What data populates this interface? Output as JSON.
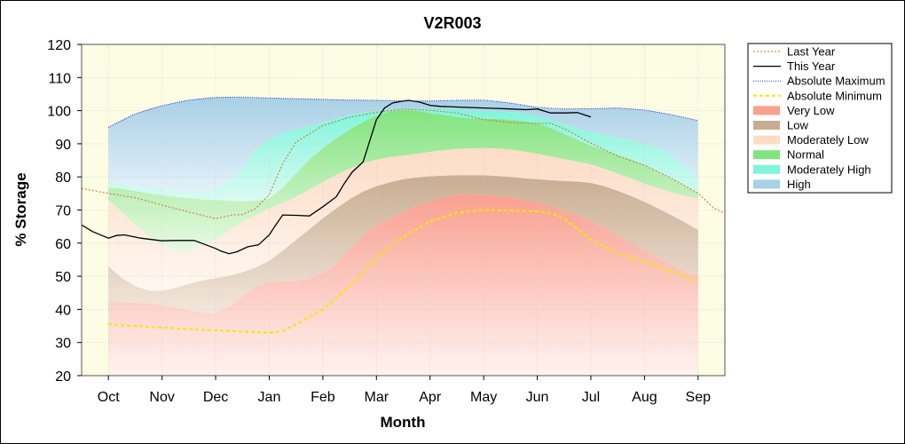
{
  "chart_data": {
    "type": "area",
    "title": "V2R003",
    "xlabel": "Month",
    "ylabel": "% Storage",
    "ylim": [
      20,
      120
    ],
    "yticks": [
      20,
      30,
      40,
      50,
      60,
      70,
      80,
      90,
      100,
      110,
      120
    ],
    "xlim": [
      -0.5,
      11.5
    ],
    "categories": [
      "Oct",
      "Nov",
      "Dec",
      "Jan",
      "Feb",
      "Mar",
      "Apr",
      "May",
      "Jun",
      "Jul",
      "Aug",
      "Sep"
    ],
    "grid": true,
    "legend_position": "right",
    "band_x": [
      0,
      0.25,
      0.5,
      0.75,
      1,
      1.25,
      1.5,
      1.75,
      2,
      2.25,
      2.5,
      2.75,
      3,
      3.25,
      3.5,
      3.75,
      4,
      4.25,
      4.5,
      4.75,
      5,
      5.25,
      5.5,
      5.75,
      6,
      6.25,
      6.5,
      6.75,
      7,
      7.25,
      7.5,
      7.75,
      8,
      8.25,
      8.5,
      8.75,
      9,
      9.25,
      9.5,
      9.75,
      10,
      10.25,
      10.5,
      10.75,
      11
    ],
    "bands": [
      {
        "name": "Very Low",
        "color_top": "#f9a090",
        "color_bottom": "#fff3f0",
        "lower": [
          20,
          20,
          20,
          20,
          20,
          20,
          20,
          20,
          20,
          20,
          20,
          20,
          20,
          20,
          20,
          20,
          20,
          20,
          20,
          20,
          20,
          20,
          20,
          20,
          20,
          20,
          20,
          20,
          20,
          20,
          20,
          20,
          20,
          20,
          20,
          20,
          20,
          20,
          20,
          20,
          20,
          20,
          20,
          20,
          20
        ],
        "upper": [
          42.5,
          42.3,
          42.1,
          41.8,
          41.4,
          40.6,
          39.8,
          39,
          38.8,
          41,
          44,
          47,
          48.3,
          48.5,
          48.7,
          49.3,
          51,
          54,
          58,
          62.5,
          65.5,
          67.5,
          69.5,
          71.3,
          72.7,
          73.8,
          74.5,
          74.7,
          74.6,
          74.2,
          73.8,
          73,
          72.5,
          71.2,
          69.8,
          68.3,
          66.7,
          64.8,
          62.5,
          60,
          57.8,
          55.5,
          53.5,
          51.5,
          50
        ]
      },
      {
        "name": "Low",
        "color_top": "#c9ad91",
        "color_bottom": "#f2e7dc",
        "lower": [
          42.5,
          42.3,
          42.1,
          41.8,
          41.4,
          40.6,
          39.8,
          39,
          38.8,
          41,
          44,
          47,
          48.3,
          48.5,
          48.7,
          49.3,
          51,
          54,
          58,
          62.5,
          65.5,
          67.5,
          69.5,
          71.3,
          72.7,
          73.8,
          74.5,
          74.7,
          74.6,
          74.2,
          73.8,
          73,
          72.5,
          71.2,
          69.8,
          68.3,
          66.7,
          64.8,
          62.5,
          60,
          57.8,
          55.5,
          53.5,
          51.5,
          50
        ],
        "upper": [
          53,
          49.5,
          47,
          45.7,
          45.6,
          46.5,
          47.7,
          48.7,
          49.4,
          50.2,
          51.2,
          52.7,
          54.7,
          57.7,
          61,
          64.2,
          67.5,
          70.5,
          73.3,
          75.6,
          77.2,
          78.4,
          79.3,
          79.8,
          80.2,
          80.4,
          80.5,
          80.5,
          80.5,
          80.3,
          80,
          79.6,
          79.3,
          79,
          78.8,
          78.6,
          78.2,
          77.2,
          75.8,
          74.2,
          72.5,
          70.5,
          68.5,
          66.3,
          64
        ]
      },
      {
        "name": "Moderately Low",
        "color_top": "#fcdcc6",
        "color_bottom": "#fff8f2",
        "lower": [
          53,
          49.5,
          47,
          45.7,
          45.6,
          46.5,
          47.7,
          48.7,
          49.4,
          50.2,
          51.2,
          52.7,
          54.7,
          57.7,
          61,
          64.2,
          67.5,
          70.5,
          73.3,
          75.6,
          77.2,
          78.4,
          79.3,
          79.8,
          80.2,
          80.4,
          80.5,
          80.5,
          80.5,
          80.3,
          80,
          79.6,
          79.3,
          79,
          78.8,
          78.6,
          78.2,
          77.2,
          75.8,
          74.2,
          72.5,
          70.5,
          68.5,
          66.3,
          64
        ],
        "upper": [
          73,
          69.5,
          65.5,
          62,
          59.2,
          57.5,
          57.6,
          59.2,
          61,
          63.7,
          66.4,
          68.5,
          70.5,
          72.2,
          74,
          76.2,
          78.5,
          80.6,
          82.5,
          84.1,
          85.2,
          86,
          86.4,
          87,
          87.6,
          88.1,
          88.5,
          88.6,
          88.7,
          88.6,
          88.3,
          87.7,
          87,
          86.2,
          85.4,
          84.6,
          83.8,
          82.5,
          81,
          79.5,
          78,
          76.6,
          75.4,
          74.3,
          73.5
        ]
      },
      {
        "name": "Normal",
        "color_top": "#82e47e",
        "color_bottom": "#e9f9e3",
        "lower": [
          73,
          69.5,
          65.5,
          62,
          59.2,
          57.5,
          57.6,
          59.2,
          61,
          63.7,
          66.4,
          68.5,
          70.5,
          72.2,
          74,
          76.2,
          78.5,
          80.6,
          82.5,
          84.1,
          85.2,
          86,
          86.4,
          87,
          87.6,
          88.1,
          88.5,
          88.6,
          88.7,
          88.6,
          88.3,
          87.7,
          87,
          86.2,
          85.4,
          84.6,
          83.8,
          82.5,
          81,
          79.5,
          78,
          76.6,
          75.4,
          74.3,
          73.5
        ],
        "upper": [
          76.8,
          76.4,
          75.8,
          75,
          74.5,
          74,
          73.6,
          73.2,
          73,
          72.8,
          72.6,
          72.8,
          73.5,
          76.8,
          81,
          85.3,
          88.7,
          91.6,
          94.3,
          96.6,
          98.5,
          99.8,
          100.3,
          100,
          99.3,
          98.7,
          98.1,
          97.7,
          97.6,
          97.5,
          97.3,
          96.8,
          96.2,
          94.8,
          93,
          91.2,
          89.4,
          88,
          86.7,
          85.3,
          83.5,
          81.5,
          79.5,
          77.3,
          75.2
        ]
      },
      {
        "name": "Moderately High",
        "color_top": "#7ff5da",
        "color_bottom": "#dbfbf3",
        "lower": [
          76.8,
          76.4,
          75.8,
          75,
          74.5,
          74,
          73.6,
          73.2,
          73,
          72.8,
          72.6,
          72.8,
          73.5,
          76.8,
          81,
          85.3,
          88.7,
          91.6,
          94.3,
          96.6,
          98.5,
          99.8,
          100.3,
          100,
          99.3,
          98.7,
          98.1,
          97.7,
          97.6,
          97.5,
          97.3,
          96.8,
          96.2,
          94.8,
          93,
          91.2,
          89.4,
          88,
          86.7,
          85.3,
          83.5,
          81.5,
          79.5,
          77.3,
          75.2
        ],
        "upper": [
          78,
          77.5,
          77,
          76.6,
          76.2,
          75.8,
          75.6,
          75.7,
          76.5,
          78.8,
          83.2,
          88.2,
          91.5,
          93.2,
          94.3,
          95.4,
          96.5,
          97.7,
          98.7,
          99.4,
          100,
          100.3,
          100.5,
          100.6,
          100.6,
          100.5,
          100.4,
          100.2,
          100,
          99.8,
          99.6,
          99.2,
          98.3,
          97.2,
          96,
          94.6,
          93.6,
          92.6,
          91.8,
          91,
          90,
          88.7,
          86.6,
          83.5,
          79
        ]
      },
      {
        "name": "High",
        "color_top": "#a8d0e6",
        "color_bottom": "#e3f1f9",
        "lower": [
          78,
          77.5,
          77,
          76.6,
          76.2,
          75.8,
          75.6,
          75.7,
          76.5,
          78.8,
          83.2,
          88.2,
          91.5,
          93.2,
          94.3,
          95.4,
          96.5,
          97.7,
          98.7,
          99.4,
          100,
          100.3,
          100.5,
          100.6,
          100.6,
          100.5,
          100.4,
          100.2,
          100,
          99.8,
          99.6,
          99.2,
          98.3,
          97.2,
          96,
          94.6,
          93.6,
          92.6,
          91.8,
          91,
          90,
          88.7,
          86.6,
          83.5,
          79
        ],
        "upper": [
          95,
          97.2,
          99,
          100.5,
          101.5,
          102.4,
          103.2,
          103.7,
          104,
          104.1,
          104,
          103.9,
          103.8,
          103.7,
          103.6,
          103.5,
          103.4,
          103.3,
          103.2,
          103.2,
          103.1,
          103,
          102.9,
          102.9,
          102.9,
          103,
          103.1,
          103.2,
          103.1,
          102.8,
          102.3,
          101.6,
          101,
          100.6,
          100.5,
          100.5,
          100.6,
          100.7,
          100.8,
          100.6,
          100.2,
          99.6,
          98.8,
          97.9,
          97
        ]
      }
    ],
    "series": [
      {
        "name": "Last Year",
        "color": "#c87038",
        "dash": "2,2",
        "x": [
          -0.5,
          0,
          0.5,
          1,
          1.5,
          2,
          2.3,
          2.5,
          2.75,
          3,
          3.25,
          3.5,
          4,
          4.5,
          5,
          5.5,
          6,
          6.5,
          7,
          7.5,
          8,
          8.25,
          8.5,
          9,
          9.5,
          10,
          10.5,
          11,
          11.3,
          11.5
        ],
        "y": [
          76.5,
          75,
          73.7,
          71.5,
          69.4,
          67.4,
          68.5,
          68.6,
          70.5,
          74.7,
          84,
          90.5,
          95.5,
          98,
          99.5,
          100.5,
          100.1,
          99.3,
          97.3,
          96.4,
          96.1,
          96.2,
          94.6,
          90.2,
          86.3,
          83.5,
          79.6,
          75.1,
          70.5,
          69
        ]
      },
      {
        "name": "This Year",
        "color": "#000000",
        "dash": "",
        "x": [
          -0.5,
          -0.3,
          0,
          0.15,
          0.3,
          0.6,
          1,
          1.2,
          1.4,
          1.6,
          1.8,
          2,
          2.1,
          2.25,
          2.4,
          2.6,
          2.8,
          3,
          3.1,
          3.25,
          3.5,
          3.75,
          4,
          4.25,
          4.4,
          4.55,
          4.75,
          5,
          5.15,
          5.3,
          5.45,
          5.6,
          5.8,
          6,
          6.2,
          6.5,
          7,
          7.2,
          7.5,
          7.8,
          8,
          8.25,
          8.5,
          8.75,
          9
        ],
        "y": [
          65.5,
          63.5,
          61.5,
          62.3,
          62.5,
          61.5,
          60.7,
          60.8,
          60.8,
          60.8,
          59.6,
          58.4,
          57.6,
          56.8,
          57.4,
          58.9,
          59.5,
          62.5,
          65,
          68.5,
          68.4,
          68.2,
          71,
          74,
          78,
          81.5,
          84.5,
          97.3,
          100.8,
          102.3,
          102.8,
          103.1,
          102.6,
          101.6,
          101.3,
          101.1,
          100.8,
          100.7,
          100.5,
          100.3,
          100.5,
          99.3,
          99.3,
          99.4,
          98.1
        ]
      },
      {
        "name": "Absolute Maximum",
        "color": "#2323c8",
        "dash": "1,1.5",
        "x": [
          0,
          0.5,
          1,
          1.5,
          2,
          2.5,
          3,
          3.5,
          4,
          4.5,
          5,
          5.5,
          6,
          6.5,
          7,
          7.5,
          8,
          8.5,
          9,
          9.5,
          10,
          10.5,
          11
        ],
        "y": [
          95,
          99,
          101.5,
          103.2,
          104,
          104.1,
          103.8,
          103.6,
          103.4,
          103.2,
          103.1,
          102.9,
          102.9,
          103.1,
          103.2,
          102.3,
          101,
          100.5,
          100.6,
          100.8,
          100.2,
          98.8,
          97
        ]
      },
      {
        "name": "Absolute Minimum",
        "color": "#f5e800",
        "dash": "4,3",
        "x": [
          0,
          0.5,
          1,
          1.5,
          2,
          2.5,
          3,
          3.25,
          3.5,
          4,
          4.5,
          5,
          5.5,
          6,
          6.5,
          7,
          7.5,
          8,
          8.25,
          8.5,
          9,
          9.5,
          10,
          10.5,
          11
        ],
        "y": [
          35.5,
          35,
          34.5,
          34,
          33.7,
          33.3,
          32.9,
          33.5,
          35.5,
          40,
          47,
          55.5,
          62,
          66.5,
          69.2,
          70,
          69.8,
          69.6,
          69,
          67.5,
          61,
          57,
          54.3,
          51.5,
          48.3
        ]
      }
    ],
    "legend": [
      {
        "label": "Last Year",
        "kind": "line",
        "color": "#c87038",
        "dash": "2,2",
        "width": 1
      },
      {
        "label": "This Year",
        "kind": "line",
        "color": "#000000",
        "dash": "",
        "width": 1.3
      },
      {
        "label": "Absolute Maximum",
        "kind": "line",
        "color": "#2323c8",
        "dash": "1,1.5",
        "width": 1
      },
      {
        "label": "Absolute Minimum",
        "kind": "line",
        "color": "#f5e800",
        "dash": "4,3",
        "width": 2
      },
      {
        "label": "Very Low",
        "kind": "swatch",
        "color": "#f9a090"
      },
      {
        "label": "Low",
        "kind": "swatch",
        "color": "#c9ad91"
      },
      {
        "label": "Moderately Low",
        "kind": "swatch",
        "color": "#fcdcc6"
      },
      {
        "label": "Normal",
        "kind": "swatch",
        "color": "#82e47e"
      },
      {
        "label": "Moderately High",
        "kind": "swatch",
        "color": "#7ff5da"
      },
      {
        "label": "High",
        "kind": "swatch",
        "color": "#a8d0e6"
      }
    ]
  }
}
